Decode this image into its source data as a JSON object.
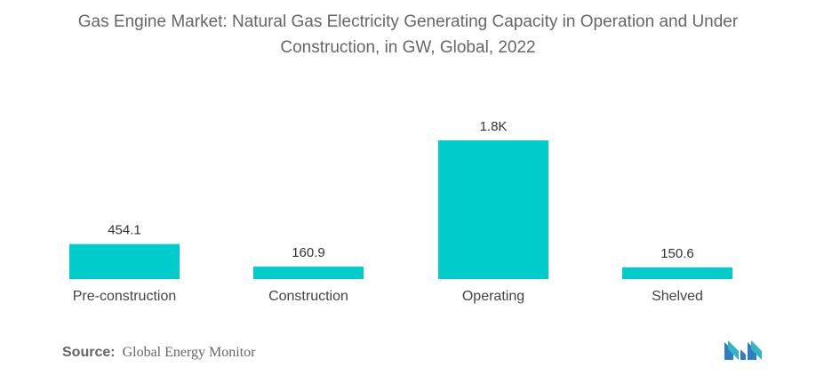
{
  "title_line1": "Gas Engine Market: Natural Gas Electricity Generating Capacity in Operation and Under",
  "title_line2": "Construction, in GW, Global, 2022",
  "source_label": "Source:",
  "source_text": "Global Energy Monitor",
  "colors": {
    "bar": "#00CCCC",
    "text": "#555555",
    "logo": "#2d7fc1"
  },
  "chart_data": {
    "type": "bar",
    "categories": [
      "Pre-construction",
      "Construction",
      "Operating",
      "Shelved"
    ],
    "values": [
      454.1,
      160.9,
      1800,
      150.6
    ],
    "data_labels": [
      "454.1",
      "160.9",
      "1.8K",
      "150.6"
    ],
    "ylim": [
      0,
      1800
    ],
    "grid": false,
    "legend": "none"
  }
}
